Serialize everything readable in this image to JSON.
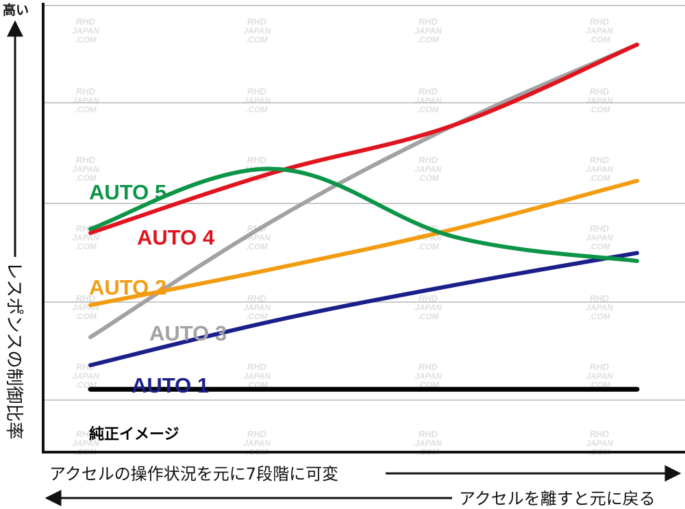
{
  "chart_data": {
    "type": "line",
    "title": "",
    "xlabel": "アクセルの操作状況を元に7段階に可変",
    "xlabel_return": "アクセルを離すと元に戻る",
    "ylabel": "レスポンスの制御比率",
    "y_top_label": "高い",
    "grid": true,
    "x": [
      0,
      1,
      2,
      3
    ],
    "xlim": [
      0,
      3
    ],
    "ylim": [
      0,
      100
    ],
    "series": [
      {
        "name": "AUTO 5",
        "color": "#0c9447",
        "values": [
          48,
          63,
          46,
          40
        ]
      },
      {
        "name": "AUTO 4",
        "color": "#e0141e",
        "values": [
          47,
          62,
          74,
          94
        ]
      },
      {
        "name": "AUTO 2",
        "color": "#f29c12",
        "values": [
          29,
          38,
          48,
          60
        ]
      },
      {
        "name": "AUTO 3",
        "color": "#a2a2a2",
        "values": [
          21,
          50,
          74,
          94
        ]
      },
      {
        "name": "AUTO 1",
        "color": "#1b1f8a",
        "values": [
          14,
          25,
          34,
          42
        ]
      },
      {
        "name": "純正イメージ",
        "color": "#000000",
        "values": [
          8,
          8,
          8,
          8
        ]
      }
    ],
    "watermark": [
      "RHD",
      "JAPAN",
      ".COM"
    ]
  }
}
